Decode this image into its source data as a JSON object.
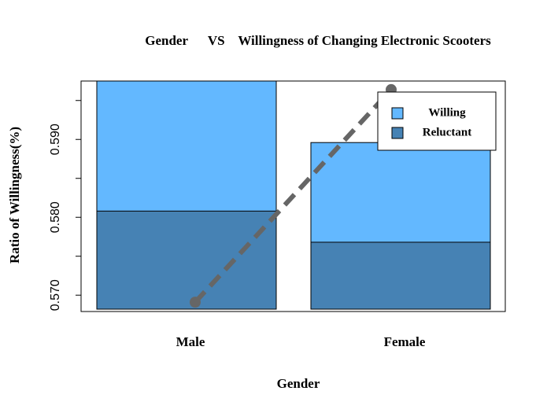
{
  "chart_data": {
    "type": "bar",
    "title": "Gender      VS    Willingness of Changing Electronic Scooters",
    "x_label": "Gender",
    "y_label": "Ratio of Willingness(%)",
    "categories": [
      "Male",
      "Female"
    ],
    "series": [
      {
        "name": "Willing",
        "color": "#63b8ff",
        "values": [
          0.6,
          0.5896
        ]
      },
      {
        "name": "Reluctant",
        "color": "#4682b4",
        "values": [
          0.5808,
          0.5768
        ]
      }
    ],
    "line": {
      "color": "#666666",
      "values": [
        0.5691,
        0.5964
      ]
    },
    "ylim": [
      0.5679,
      0.5975
    ],
    "yticks": [
      {
        "value": 0.57,
        "label": "0.570"
      },
      {
        "value": 0.58,
        "label": "0.580"
      },
      {
        "value": 0.59,
        "label": "0.590"
      }
    ],
    "yminorticks": [
      0.575,
      0.585,
      0.595
    ],
    "legend": "topright"
  }
}
